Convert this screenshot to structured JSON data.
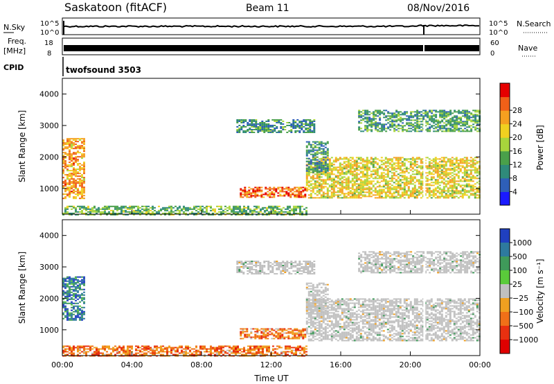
{
  "header": {
    "station": "Saskatoon (fitACF)",
    "beam": "Beam 11",
    "date": "08/Nov/2016"
  },
  "top_panels": {
    "nsky_label": "N.Sky",
    "nsky_ticks": [
      "10^5",
      "10^0"
    ],
    "nsearch_label": "N.Search",
    "nsearch_ticks": [
      "10^5",
      "10^0"
    ],
    "freq_label": "Freq.",
    "freq_unit": "[MHz]",
    "freq_ticks": [
      "18",
      "8"
    ],
    "nave_label": "Nave",
    "nave_ticks": [
      "60",
      "0"
    ],
    "cpid_label": "CPID",
    "cpid_value": "twofsound 3503"
  },
  "chart_data": [
    {
      "type": "heatmap",
      "name": "power",
      "xlabel": "",
      "ylabel": "Slant Range [km]",
      "xlim": [
        0,
        24
      ],
      "ylim": [
        180,
        4500
      ],
      "y_ticks": [
        "1000",
        "2000",
        "3000",
        "4000"
      ],
      "colorbar": {
        "label": "Power [dB]",
        "ticks": [
          "4",
          "8",
          "12",
          "16",
          "20",
          "24",
          "28"
        ],
        "colors": [
          "#1a1aff",
          "#2e5fb8",
          "#2f8a7a",
          "#4aa04a",
          "#a7d53c",
          "#f0d020",
          "#f5a020",
          "#f06018",
          "#e60000"
        ]
      },
      "regions": [
        {
          "t0": 0.0,
          "t1": 1.2,
          "r0": 700,
          "r1": 2600,
          "level": 0.72
        },
        {
          "t0": 10.2,
          "t1": 14.0,
          "r0": 700,
          "r1": 1050,
          "level": 0.82
        },
        {
          "t0": 14.0,
          "t1": 24.0,
          "r0": 700,
          "r1": 2000,
          "level": 0.6
        },
        {
          "t0": 10.0,
          "t1": 14.5,
          "r0": 2800,
          "r1": 3200,
          "level": 0.3
        },
        {
          "t0": 17.0,
          "t1": 24.0,
          "r0": 2800,
          "r1": 3500,
          "level": 0.35
        },
        {
          "t0": 0.0,
          "t1": 14.0,
          "r0": 180,
          "r1": 450,
          "level": 0.4
        },
        {
          "t0": 14.0,
          "t1": 15.2,
          "r0": 1500,
          "r1": 2500,
          "level": 0.3
        }
      ]
    },
    {
      "type": "heatmap",
      "name": "velocity",
      "xlabel": "Time UT",
      "ylabel": "Slant Range [km]",
      "xlim": [
        0,
        24
      ],
      "ylim": [
        180,
        4500
      ],
      "x_ticks": [
        "00:00",
        "04:00",
        "08:00",
        "12:00",
        "16:00",
        "20:00",
        "00:00"
      ],
      "y_ticks": [
        "1000",
        "2000",
        "3000",
        "4000"
      ],
      "colorbar": {
        "label": "Velocity [m s⁻¹]",
        "ticks": [
          "1000",
          "500",
          "100",
          "25",
          "−25",
          "−100",
          "−500",
          "−1000"
        ],
        "colors": [
          "#2040c0",
          "#2e7a9e",
          "#3f9a5a",
          "#5acb3a",
          "#c0c0c0",
          "#f0a020",
          "#f07018",
          "#e83010",
          "#e00000"
        ]
      },
      "regions": [
        {
          "t0": 0.0,
          "t1": 1.2,
          "r0": 1300,
          "r1": 2700,
          "level": 0.2
        },
        {
          "t0": 10.2,
          "t1": 14.0,
          "r0": 700,
          "r1": 1050,
          "level": 0.7
        },
        {
          "t0": 14.0,
          "t1": 24.0,
          "r0": 650,
          "r1": 2000,
          "level": 0.5
        },
        {
          "t0": 10.0,
          "t1": 14.5,
          "r0": 2800,
          "r1": 3200,
          "level": 0.5
        },
        {
          "t0": 17.0,
          "t1": 24.0,
          "r0": 2800,
          "r1": 3500,
          "level": 0.5
        },
        {
          "t0": 0.0,
          "t1": 14.0,
          "r0": 180,
          "r1": 500,
          "level": 0.72
        },
        {
          "t0": 14.0,
          "t1": 15.2,
          "r0": 1500,
          "r1": 2500,
          "level": 0.5
        }
      ]
    }
  ]
}
